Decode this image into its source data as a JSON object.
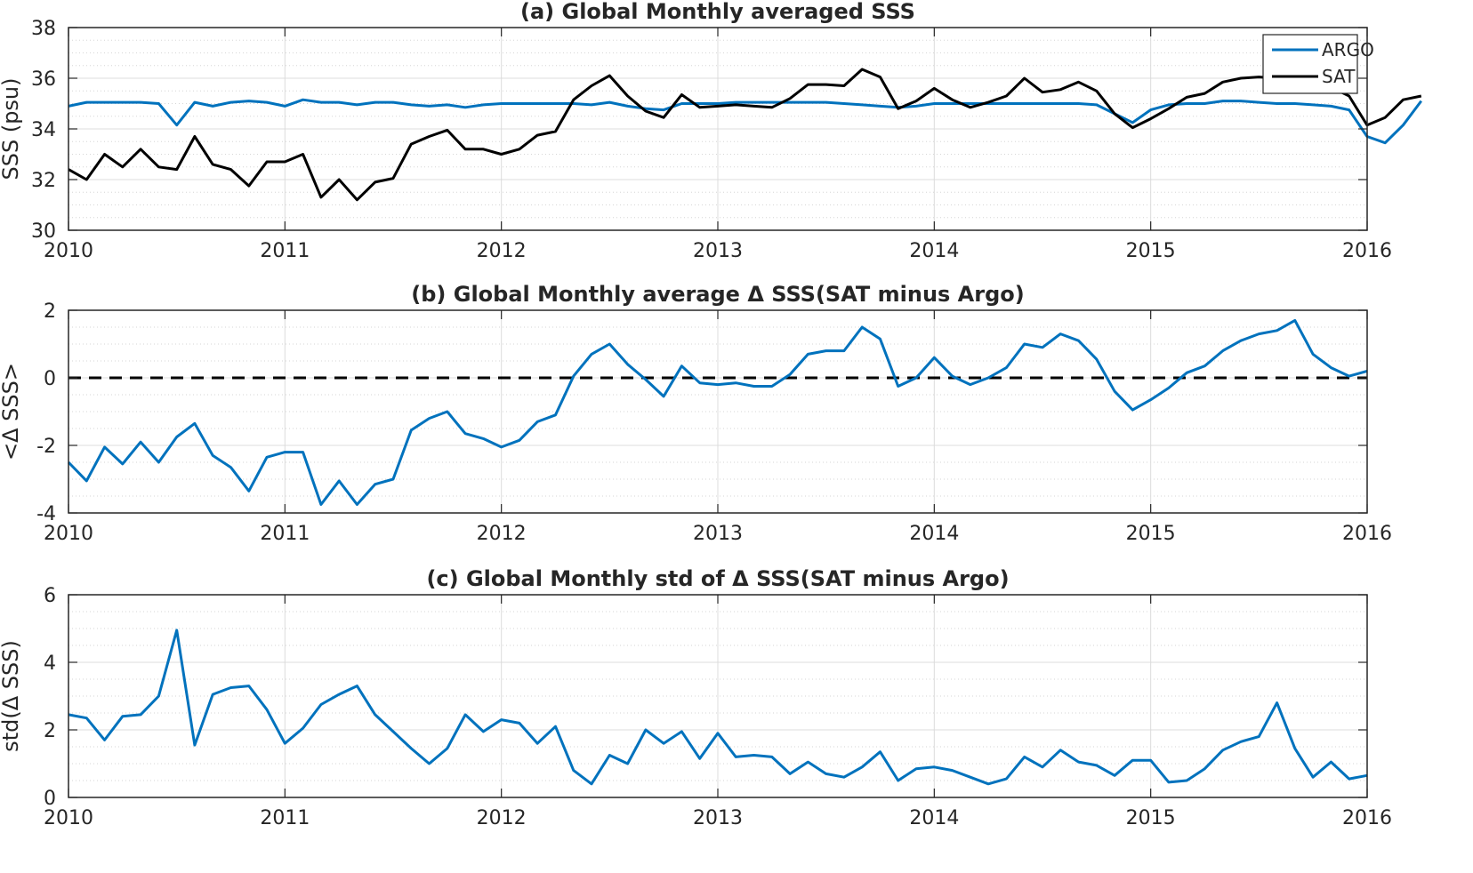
{
  "chart_data": [
    {
      "type": "line",
      "title": "(a) Global Monthly averaged SSS",
      "xlabel": "",
      "ylabel": "SSS (psu)",
      "xlim": [
        2010,
        2016
      ],
      "ylim": [
        30,
        38
      ],
      "xticks": [
        "2010",
        "2011",
        "2012",
        "2013",
        "2014",
        "2015",
        "2016"
      ],
      "yticks": [
        "30",
        "32",
        "34",
        "36",
        "38"
      ],
      "grid": true,
      "legend": "top-right",
      "x_start": 2010.0,
      "x_step": 0.08333,
      "series": [
        {
          "name": "ARGO",
          "color": "#0072BD",
          "values": [
            34.9,
            35.05,
            35.05,
            35.05,
            35.05,
            35.0,
            34.15,
            35.05,
            34.9,
            35.05,
            35.1,
            35.05,
            34.9,
            35.15,
            35.05,
            35.05,
            34.95,
            35.05,
            35.05,
            34.95,
            34.9,
            34.95,
            34.85,
            34.95,
            35.0,
            35.0,
            35.0,
            35.0,
            35.0,
            34.95,
            35.05,
            34.9,
            34.8,
            34.75,
            35.0,
            35.0,
            35.0,
            35.05,
            35.05,
            35.05,
            35.05,
            35.05,
            35.05,
            35.0,
            34.95,
            34.9,
            34.85,
            34.9,
            35.0,
            35.0,
            35.0,
            35.0,
            35.0,
            35.0,
            35.0,
            35.0,
            35.0,
            34.95,
            34.6,
            34.25,
            34.75,
            34.95,
            35.0,
            35.0,
            35.1,
            35.1,
            35.05,
            35.0,
            35.0,
            34.95,
            34.9,
            34.75,
            33.7,
            33.45,
            34.15,
            35.1
          ]
        },
        {
          "name": "SAT",
          "color": "#000000",
          "values": [
            32.4,
            32.0,
            33.0,
            32.5,
            33.2,
            32.5,
            32.4,
            33.7,
            32.6,
            32.4,
            31.75,
            32.7,
            32.7,
            33.0,
            31.3,
            32.0,
            31.2,
            31.9,
            32.05,
            33.4,
            33.7,
            33.95,
            33.2,
            33.2,
            33.0,
            33.2,
            33.75,
            33.9,
            35.15,
            35.7,
            36.1,
            35.3,
            34.7,
            34.45,
            35.35,
            34.85,
            34.9,
            34.95,
            34.9,
            34.85,
            35.2,
            35.75,
            35.75,
            35.7,
            36.35,
            36.05,
            34.8,
            35.1,
            35.6,
            35.15,
            34.85,
            35.05,
            35.3,
            36.0,
            35.45,
            35.55,
            35.85,
            35.5,
            34.6,
            34.05,
            34.4,
            34.8,
            35.25,
            35.4,
            35.85,
            36.0,
            36.05,
            36.0,
            35.95,
            35.85,
            35.65,
            35.3,
            34.15,
            34.45,
            35.15,
            35.3
          ]
        }
      ]
    },
    {
      "type": "line",
      "title": "(b) Global Monthly average Δ SSS(SAT minus Argo)",
      "xlabel": "",
      "ylabel": "<Δ SSS>",
      "xlim": [
        2010,
        2016
      ],
      "ylim": [
        -4,
        2
      ],
      "xticks": [
        "2010",
        "2011",
        "2012",
        "2013",
        "2014",
        "2015",
        "2016"
      ],
      "yticks": [
        "-4",
        "-2",
        "0",
        "2"
      ],
      "grid": true,
      "zero_line": true,
      "x_start": 2010.0,
      "x_step": 0.08333,
      "series": [
        {
          "color": "#0072BD",
          "values": [
            -2.5,
            -3.05,
            -2.05,
            -2.55,
            -1.9,
            -2.5,
            -1.75,
            -1.35,
            -2.3,
            -2.65,
            -3.35,
            -2.35,
            -2.2,
            -2.2,
            -3.75,
            -3.05,
            -3.75,
            -3.15,
            -3.0,
            -1.55,
            -1.2,
            -1.0,
            -1.65,
            -1.8,
            -2.05,
            -1.85,
            -1.3,
            -1.1,
            0.05,
            0.7,
            1.0,
            0.4,
            -0.05,
            -0.55,
            0.35,
            -0.15,
            -0.2,
            -0.15,
            -0.25,
            -0.25,
            0.1,
            0.7,
            0.8,
            0.8,
            1.5,
            1.15,
            -0.25,
            0.0,
            0.6,
            0.05,
            -0.2,
            0.0,
            0.3,
            1.0,
            0.9,
            1.3,
            1.1,
            0.55,
            -0.4,
            -0.95,
            -0.65,
            -0.3,
            0.15,
            0.35,
            0.8,
            1.1,
            1.3,
            1.4,
            1.7,
            0.7,
            0.3,
            0.05,
            0.2
          ]
        }
      ]
    },
    {
      "type": "line",
      "title": "(c) Global Monthly std of Δ SSS(SAT minus Argo)",
      "xlabel": "",
      "ylabel": "std(Δ SSS)",
      "xlim": [
        2010,
        2016
      ],
      "ylim": [
        0,
        6
      ],
      "xticks": [
        "2010",
        "2011",
        "2012",
        "2013",
        "2014",
        "2015",
        "2016"
      ],
      "yticks": [
        "0",
        "2",
        "4",
        "6"
      ],
      "grid": true,
      "x_start": 2010.0,
      "x_step": 0.08333,
      "series": [
        {
          "color": "#0072BD",
          "values": [
            2.45,
            2.35,
            1.7,
            2.4,
            2.45,
            3.0,
            4.95,
            1.55,
            3.05,
            3.25,
            3.3,
            2.6,
            1.6,
            2.05,
            2.75,
            3.05,
            3.3,
            2.45,
            1.95,
            1.45,
            1.0,
            1.45,
            2.45,
            1.95,
            2.3,
            2.2,
            1.6,
            2.1,
            0.8,
            0.4,
            1.25,
            1.0,
            2.0,
            1.6,
            1.95,
            1.15,
            1.9,
            1.2,
            1.25,
            1.2,
            0.7,
            1.05,
            0.7,
            0.6,
            0.9,
            1.35,
            0.5,
            0.85,
            0.9,
            0.8,
            0.6,
            0.4,
            0.55,
            1.2,
            0.9,
            1.4,
            1.05,
            0.95,
            0.65,
            1.1,
            1.1,
            0.45,
            0.5,
            0.85,
            1.4,
            1.65,
            1.8,
            2.8,
            1.45,
            0.6,
            1.05,
            0.55,
            0.65
          ]
        }
      ]
    }
  ]
}
